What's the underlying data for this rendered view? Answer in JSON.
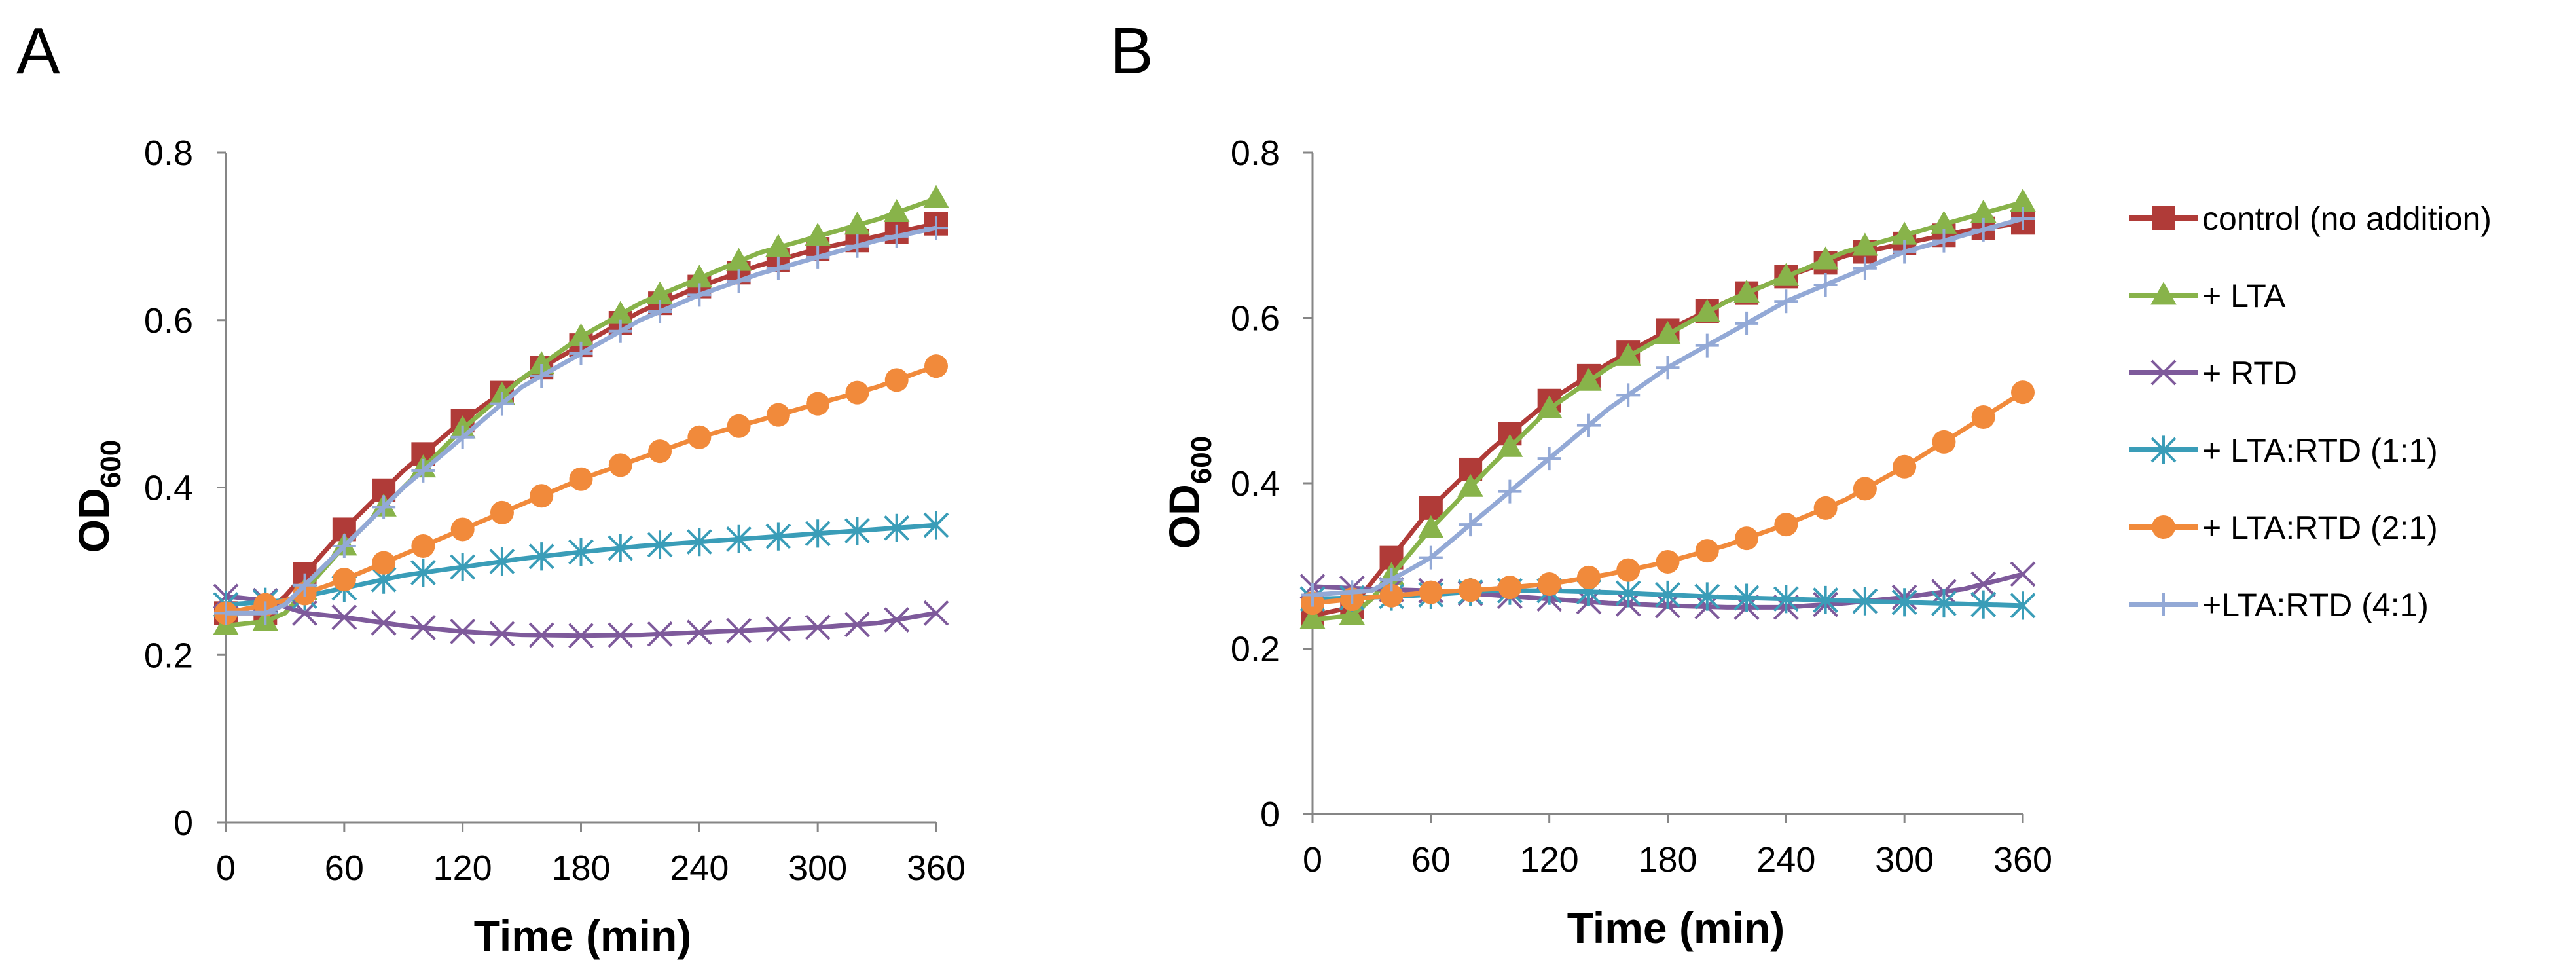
{
  "panels": [
    {
      "letter": "A",
      "xlabel": "Time (min)",
      "ylabel_main": "OD",
      "ylabel_sub": "600"
    },
    {
      "letter": "B",
      "xlabel": "Time (min)",
      "ylabel_main": "OD",
      "ylabel_sub": "600"
    }
  ],
  "legend": {
    "entries": [
      {
        "label": "control (no addition)",
        "color": "#b03b38",
        "marker": "square"
      },
      {
        "label": "+ LTA",
        "color": "#88b34a",
        "marker": "triangle"
      },
      {
        "label": "+ RTD",
        "color": "#7e5a9b",
        "marker": "x"
      },
      {
        "label": "+ LTA:RTD (1:1)",
        "color": "#3a9db8",
        "marker": "star"
      },
      {
        "label": "+ LTA:RTD (2:1)",
        "color": "#f18a3b",
        "marker": "circle"
      },
      {
        "label": "+LTA:RTD (4:1)",
        "color": "#93a9d6",
        "marker": "plus"
      }
    ]
  },
  "chart_data": [
    {
      "type": "line",
      "title": "A",
      "xlabel": "Time (min)",
      "ylabel": "OD600",
      "xlim": [
        0,
        360
      ],
      "ylim": [
        0,
        0.8
      ],
      "xticks": [
        0,
        60,
        120,
        180,
        240,
        300,
        360
      ],
      "yticks": [
        0,
        0.2,
        0.4,
        0.6,
        0.8
      ],
      "ytick_labels": [
        "0",
        "0.2",
        "0.4",
        "0.6",
        "0.8"
      ],
      "x_step": 10,
      "series": [
        {
          "name": "control (no addition)",
          "anchors": [
            [
              0,
              0.25
            ],
            [
              20,
              0.25
            ],
            [
              30,
              0.27
            ],
            [
              60,
              0.35
            ],
            [
              90,
              0.42
            ],
            [
              120,
              0.48
            ],
            [
              150,
              0.53
            ],
            [
              180,
              0.57
            ],
            [
              210,
              0.61
            ],
            [
              240,
              0.64
            ],
            [
              270,
              0.665
            ],
            [
              300,
              0.685
            ],
            [
              330,
              0.7
            ],
            [
              360,
              0.715
            ]
          ]
        },
        {
          "name": "+ LTA",
          "anchors": [
            [
              0,
              0.235
            ],
            [
              20,
              0.24
            ],
            [
              30,
              0.25
            ],
            [
              60,
              0.33
            ],
            [
              90,
              0.4
            ],
            [
              120,
              0.47
            ],
            [
              150,
              0.53
            ],
            [
              180,
              0.58
            ],
            [
              210,
              0.62
            ],
            [
              240,
              0.65
            ],
            [
              270,
              0.68
            ],
            [
              300,
              0.7
            ],
            [
              330,
              0.72
            ],
            [
              360,
              0.745
            ]
          ]
        },
        {
          "name": "+ RTD",
          "anchors": [
            [
              0,
              0.27
            ],
            [
              20,
              0.265
            ],
            [
              40,
              0.25
            ],
            [
              60,
              0.245
            ],
            [
              90,
              0.235
            ],
            [
              120,
              0.228
            ],
            [
              150,
              0.224
            ],
            [
              180,
              0.223
            ],
            [
              210,
              0.224
            ],
            [
              240,
              0.227
            ],
            [
              270,
              0.23
            ],
            [
              300,
              0.233
            ],
            [
              330,
              0.238
            ],
            [
              360,
              0.25
            ]
          ]
        },
        {
          "name": "+ LTA:RTD (1:1)",
          "anchors": [
            [
              0,
              0.26
            ],
            [
              30,
              0.265
            ],
            [
              60,
              0.28
            ],
            [
              90,
              0.295
            ],
            [
              120,
              0.305
            ],
            [
              150,
              0.315
            ],
            [
              180,
              0.323
            ],
            [
              210,
              0.33
            ],
            [
              240,
              0.335
            ],
            [
              270,
              0.34
            ],
            [
              300,
              0.345
            ],
            [
              330,
              0.35
            ],
            [
              360,
              0.355
            ]
          ]
        },
        {
          "name": "+ LTA:RTD (2:1)",
          "anchors": [
            [
              0,
              0.25
            ],
            [
              30,
              0.265
            ],
            [
              60,
              0.29
            ],
            [
              90,
              0.32
            ],
            [
              120,
              0.35
            ],
            [
              150,
              0.38
            ],
            [
              180,
              0.41
            ],
            [
              210,
              0.435
            ],
            [
              240,
              0.46
            ],
            [
              270,
              0.48
            ],
            [
              300,
              0.5
            ],
            [
              330,
              0.52
            ],
            [
              360,
              0.545
            ]
          ]
        },
        {
          "name": "+LTA:RTD (4:1)",
          "anchors": [
            [
              0,
              0.25
            ],
            [
              20,
              0.25
            ],
            [
              30,
              0.26
            ],
            [
              60,
              0.33
            ],
            [
              90,
              0.4
            ],
            [
              120,
              0.46
            ],
            [
              150,
              0.52
            ],
            [
              180,
              0.56
            ],
            [
              210,
              0.6
            ],
            [
              240,
              0.63
            ],
            [
              270,
              0.655
            ],
            [
              300,
              0.675
            ],
            [
              330,
              0.695
            ],
            [
              360,
              0.71
            ]
          ]
        }
      ]
    },
    {
      "type": "line",
      "title": "B",
      "xlabel": "Time (min)",
      "ylabel": "OD600",
      "xlim": [
        0,
        360
      ],
      "ylim": [
        0,
        0.8
      ],
      "xticks": [
        0,
        60,
        120,
        180,
        240,
        300,
        360
      ],
      "yticks": [
        0,
        0.2,
        0.4,
        0.6,
        0.8
      ],
      "ytick_labels": [
        "0",
        "0.2",
        "0.4",
        "0.6",
        "0.8"
      ],
      "x_step": 10,
      "series": [
        {
          "name": "control (no addition)",
          "anchors": [
            [
              0,
              0.24
            ],
            [
              20,
              0.25
            ],
            [
              30,
              0.28
            ],
            [
              60,
              0.37
            ],
            [
              90,
              0.44
            ],
            [
              120,
              0.5
            ],
            [
              150,
              0.545
            ],
            [
              180,
              0.585
            ],
            [
              210,
              0.62
            ],
            [
              240,
              0.65
            ],
            [
              270,
              0.675
            ],
            [
              300,
              0.69
            ],
            [
              330,
              0.705
            ],
            [
              360,
              0.715
            ]
          ]
        },
        {
          "name": "+ LTA",
          "anchors": [
            [
              0,
              0.235
            ],
            [
              20,
              0.24
            ],
            [
              30,
              0.26
            ],
            [
              60,
              0.345
            ],
            [
              90,
              0.42
            ],
            [
              120,
              0.49
            ],
            [
              150,
              0.54
            ],
            [
              180,
              0.58
            ],
            [
              210,
              0.62
            ],
            [
              240,
              0.65
            ],
            [
              270,
              0.68
            ],
            [
              300,
              0.7
            ],
            [
              330,
              0.72
            ],
            [
              360,
              0.74
            ]
          ]
        },
        {
          "name": "+ RTD",
          "anchors": [
            [
              0,
              0.275
            ],
            [
              30,
              0.272
            ],
            [
              60,
              0.27
            ],
            [
              90,
              0.265
            ],
            [
              120,
              0.26
            ],
            [
              150,
              0.255
            ],
            [
              180,
              0.252
            ],
            [
              210,
              0.25
            ],
            [
              240,
              0.25
            ],
            [
              270,
              0.255
            ],
            [
              300,
              0.262
            ],
            [
              330,
              0.272
            ],
            [
              360,
              0.29
            ]
          ]
        },
        {
          "name": "+ LTA:RTD (1:1)",
          "anchors": [
            [
              0,
              0.26
            ],
            [
              30,
              0.262
            ],
            [
              60,
              0.265
            ],
            [
              90,
              0.27
            ],
            [
              120,
              0.27
            ],
            [
              150,
              0.268
            ],
            [
              180,
              0.265
            ],
            [
              210,
              0.262
            ],
            [
              240,
              0.26
            ],
            [
              270,
              0.258
            ],
            [
              300,
              0.256
            ],
            [
              330,
              0.254
            ],
            [
              360,
              0.252
            ]
          ]
        },
        {
          "name": "+ LTA:RTD (2:1)",
          "anchors": [
            [
              0,
              0.255
            ],
            [
              30,
              0.262
            ],
            [
              60,
              0.268
            ],
            [
              90,
              0.272
            ],
            [
              120,
              0.278
            ],
            [
              150,
              0.29
            ],
            [
              180,
              0.305
            ],
            [
              210,
              0.325
            ],
            [
              240,
              0.35
            ],
            [
              270,
              0.38
            ],
            [
              300,
              0.42
            ],
            [
              330,
              0.465
            ],
            [
              360,
              0.51
            ]
          ]
        },
        {
          "name": "+LTA:RTD (4:1)",
          "anchors": [
            [
              0,
              0.265
            ],
            [
              30,
              0.27
            ],
            [
              60,
              0.31
            ],
            [
              90,
              0.37
            ],
            [
              120,
              0.43
            ],
            [
              150,
              0.49
            ],
            [
              180,
              0.54
            ],
            [
              210,
              0.58
            ],
            [
              240,
              0.62
            ],
            [
              270,
              0.65
            ],
            [
              300,
              0.68
            ],
            [
              330,
              0.7
            ],
            [
              360,
              0.72
            ]
          ]
        }
      ]
    }
  ]
}
